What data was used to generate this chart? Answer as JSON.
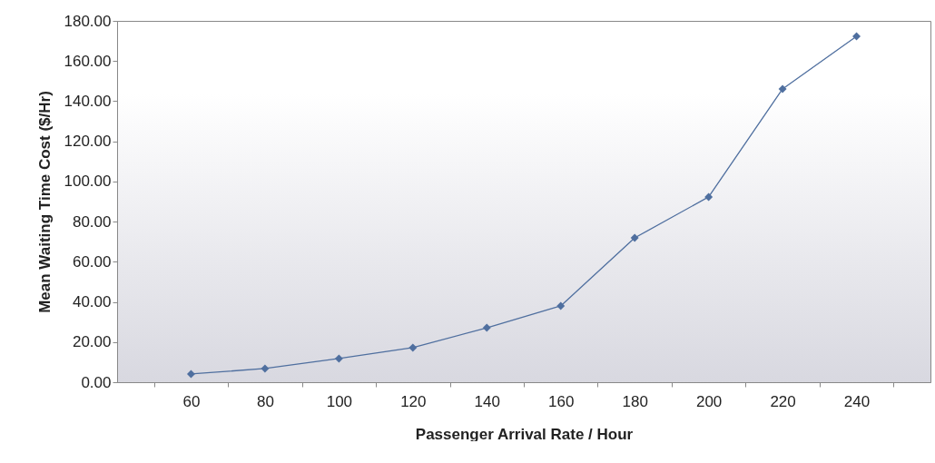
{
  "chart_data": {
    "type": "line",
    "xlabel": "Passenger Arrival Rate / Hour",
    "ylabel": "Mean Waiting Time Cost ($/Hr)",
    "categories": [
      "60",
      "80",
      "100",
      "120",
      "140",
      "160",
      "180",
      "200",
      "220",
      "240"
    ],
    "series": [
      {
        "color": "#4f6f9f",
        "values": [
          4.1,
          6.8,
          11.8,
          17.2,
          27.1,
          38.0,
          71.9,
          92.3,
          146.1,
          172.3
        ]
      }
    ],
    "ylim": [
      0,
      180
    ],
    "yticks": [
      {
        "value": 0,
        "label": "0.00"
      },
      {
        "value": 20,
        "label": "20.00"
      },
      {
        "value": 40,
        "label": "40.00"
      },
      {
        "value": 60,
        "label": "60.00"
      },
      {
        "value": 80,
        "label": "80.00"
      },
      {
        "value": 100,
        "label": "100.00"
      },
      {
        "value": 120,
        "label": "120.00"
      },
      {
        "value": 140,
        "label": "140.00"
      },
      {
        "value": 160,
        "label": "160.00"
      },
      {
        "value": 180,
        "label": "180.00"
      }
    ],
    "marker": "diamond",
    "grid": false
  }
}
